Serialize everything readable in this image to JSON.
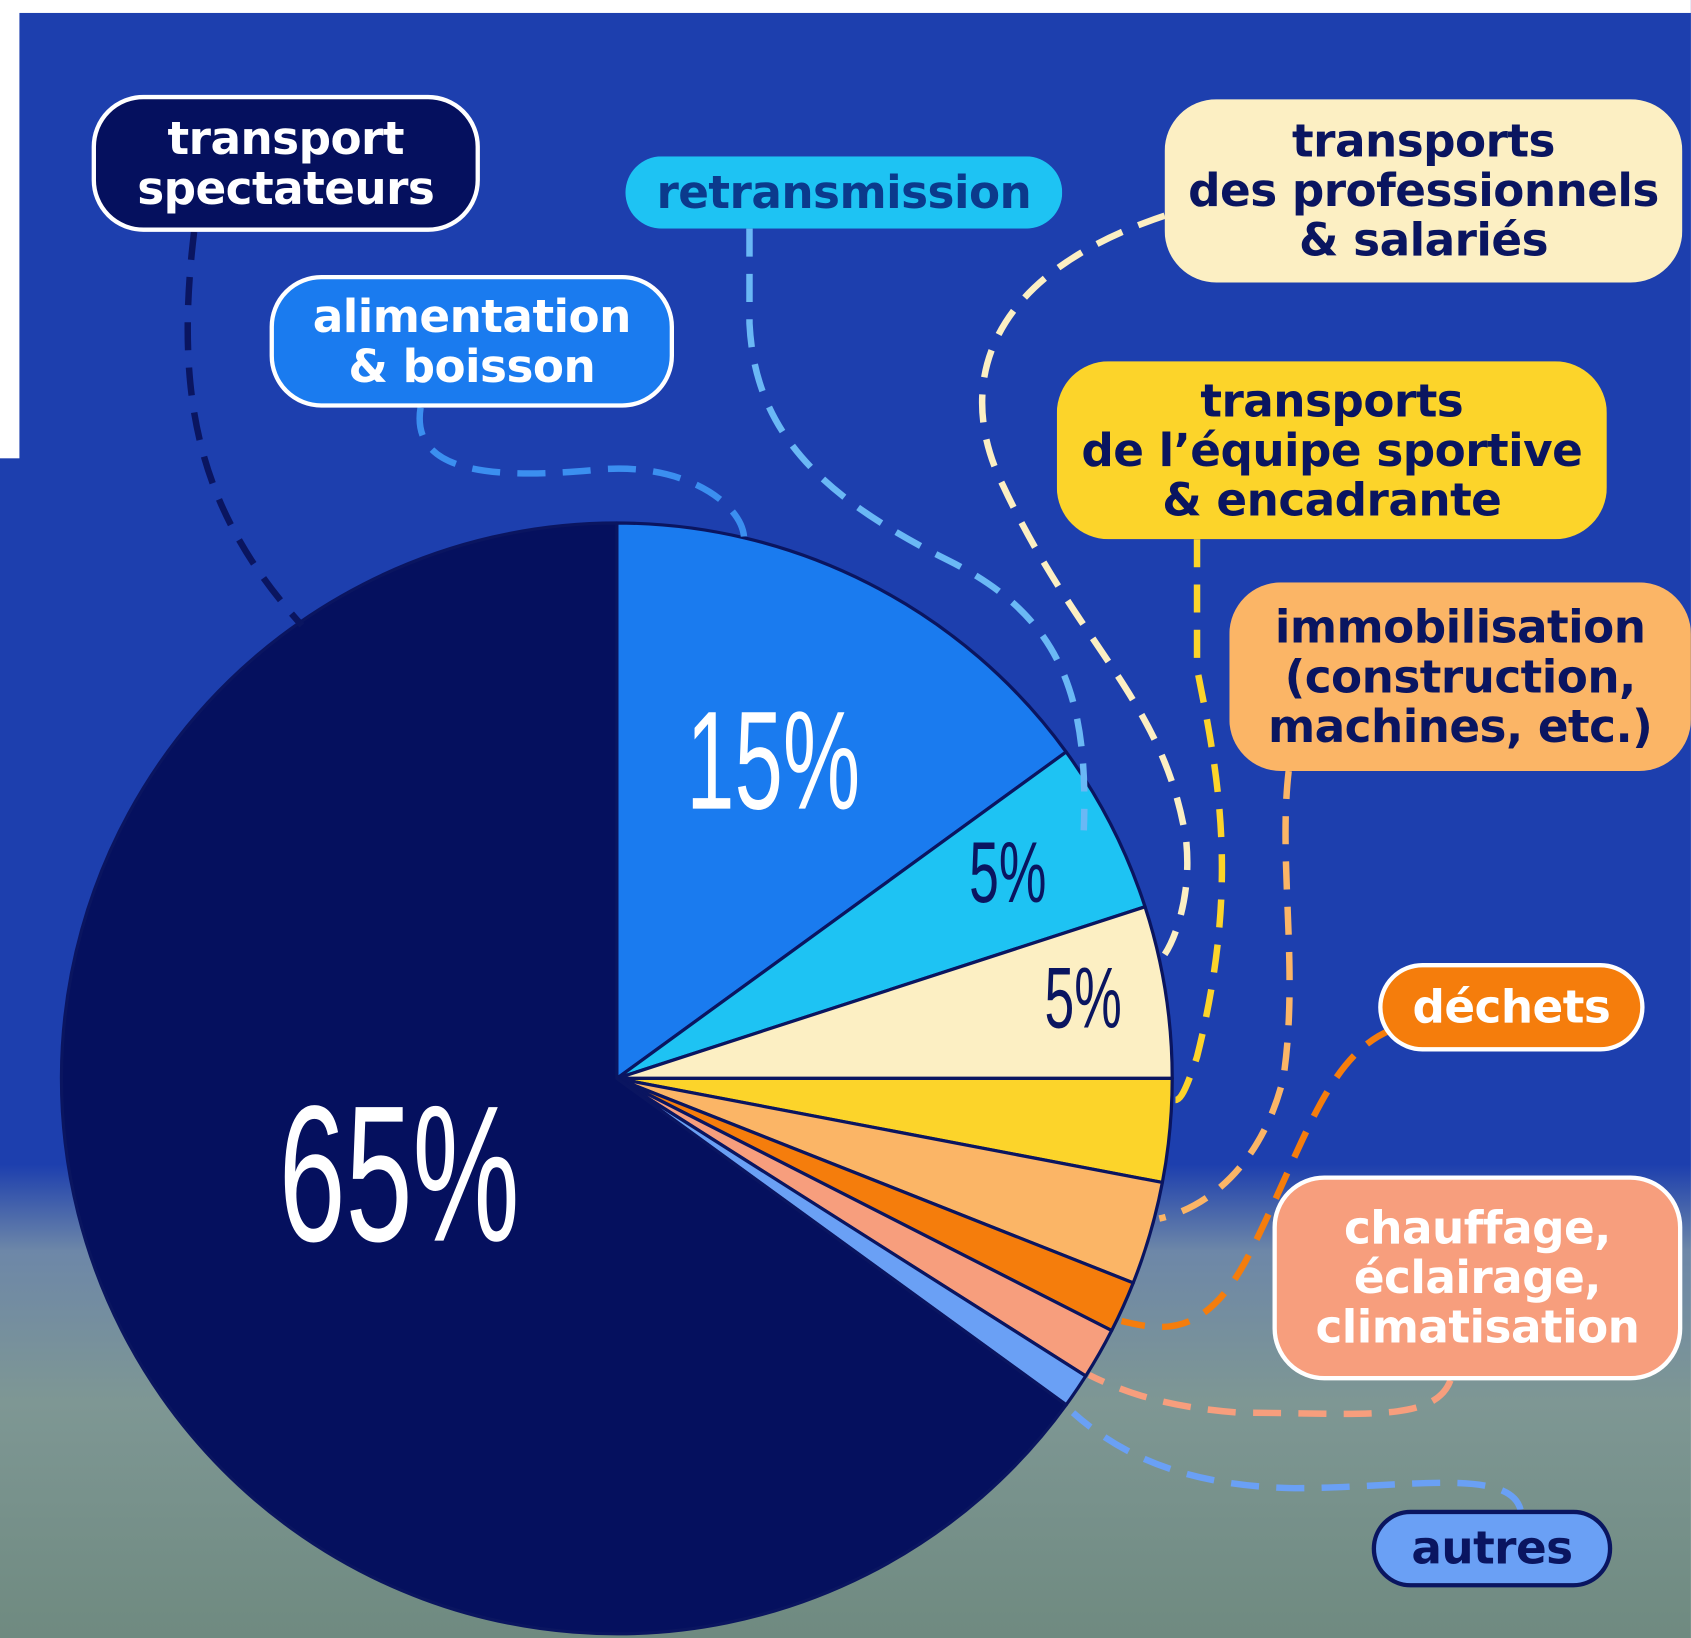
{
  "chart_data": {
    "type": "pie",
    "categories": [
      "alimentation\n& boisson",
      "retransmission",
      "transports\ndes professionnels\n& salariés",
      "transports\nde l’équipe sportive\n& encadrante",
      "immobilisation\n(construction,\nmachines, etc.)",
      "déchets",
      "chauffage,\néclairage,\nclimatisation",
      "autres",
      "transport\nspectateurs"
    ],
    "values": [
      15,
      5,
      5,
      3,
      3,
      1.5,
      1.5,
      1,
      65
    ],
    "value_labels": [
      "15%",
      "5%",
      "5%",
      null,
      null,
      null,
      null,
      null,
      "65%"
    ],
    "colors": [
      "#1a7bef",
      "#1ec3f3",
      "#fcefc3",
      "#fcd42a",
      "#fbb566",
      "#f57d0c",
      "#f79e7d",
      "#6aa0f5",
      "#05105e"
    ]
  }
}
